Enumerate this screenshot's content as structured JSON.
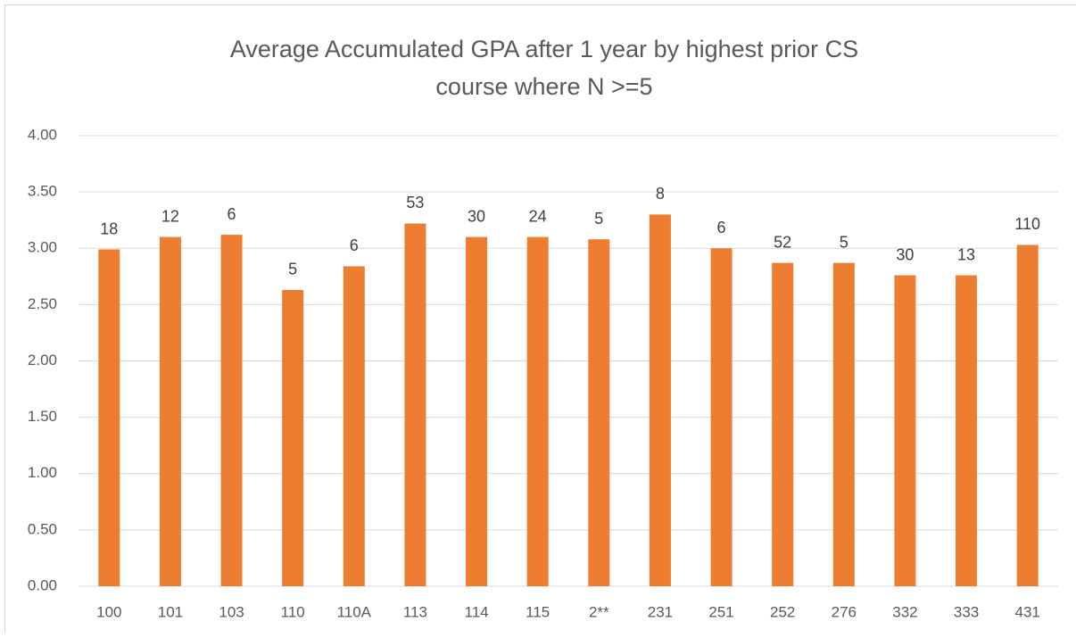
{
  "chart_data": {
    "type": "bar",
    "title": [
      "Average Accumulated GPA after 1 year by highest prior CS",
      "course where N >=5"
    ],
    "categories": [
      "100",
      "101",
      "103",
      "110",
      "110A",
      "113",
      "114",
      "115",
      "2**",
      "231",
      "251",
      "252",
      "276",
      "332",
      "333",
      "431"
    ],
    "values": [
      2.99,
      3.1,
      3.12,
      2.63,
      2.84,
      3.22,
      3.1,
      3.1,
      3.08,
      3.3,
      3.0,
      2.87,
      2.87,
      2.76,
      2.76,
      3.03
    ],
    "counts": [
      18,
      12,
      6,
      5,
      6,
      53,
      30,
      24,
      5,
      8,
      6,
      52,
      5,
      30,
      13,
      110
    ],
    "color": "#ed7d31",
    "ylim": [
      0,
      4
    ],
    "yticks": [
      {
        "value": 0,
        "label": "0.00"
      },
      {
        "value": 0.5,
        "label": "0.50"
      },
      {
        "value": 1,
        "label": "1.00"
      },
      {
        "value": 1.5,
        "label": "1.50"
      },
      {
        "value": 2,
        "label": "2.00"
      },
      {
        "value": 2.5,
        "label": "2.50"
      },
      {
        "value": 3,
        "label": "3.00"
      },
      {
        "value": 3.5,
        "label": "3.50"
      },
      {
        "value": 4,
        "label": "4.00"
      }
    ],
    "grid": true
  }
}
